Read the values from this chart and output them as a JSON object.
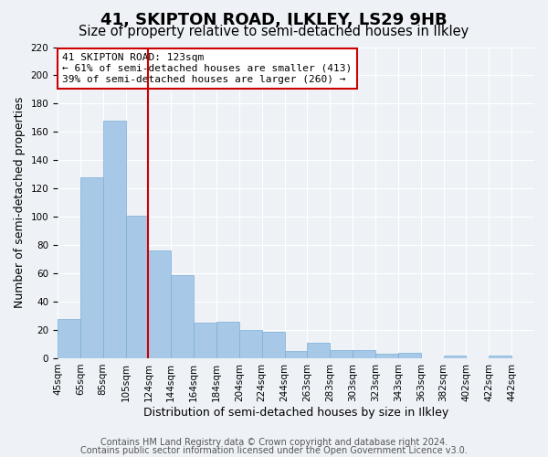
{
  "title": "41, SKIPTON ROAD, ILKLEY, LS29 9HB",
  "subtitle": "Size of property relative to semi-detached houses in Ilkley",
  "xlabel": "Distribution of semi-detached houses by size in Ilkley",
  "ylabel": "Number of semi-detached properties",
  "categories": [
    "45sqm",
    "65sqm",
    "85sqm",
    "105sqm",
    "124sqm",
    "144sqm",
    "164sqm",
    "184sqm",
    "204sqm",
    "224sqm",
    "244sqm",
    "263sqm",
    "283sqm",
    "303sqm",
    "323sqm",
    "343sqm",
    "363sqm",
    "382sqm",
    "402sqm",
    "422sqm",
    "442sqm"
  ],
  "values": [
    28,
    128,
    168,
    101,
    76,
    59,
    25,
    26,
    20,
    19,
    5,
    11,
    6,
    6,
    3,
    4,
    0,
    2,
    0,
    2,
    0
  ],
  "bar_color": "#a8c8e8",
  "bar_edge_color": "#7aafd4",
  "vline_color": "#cc0000",
  "vline_index": 3.5,
  "annotation_title": "41 SKIPTON ROAD: 123sqm",
  "annotation_line1": "← 61% of semi-detached houses are smaller (413)",
  "annotation_line2": "39% of semi-detached houses are larger (260) →",
  "annotation_box_edgecolor": "#cc0000",
  "ylim": [
    0,
    220
  ],
  "yticks": [
    0,
    20,
    40,
    60,
    80,
    100,
    120,
    140,
    160,
    180,
    200,
    220
  ],
  "footer_line1": "Contains HM Land Registry data © Crown copyright and database right 2024.",
  "footer_line2": "Contains public sector information licensed under the Open Government Licence v3.0.",
  "background_color": "#eef2f7",
  "grid_color": "#ffffff",
  "title_fontsize": 13,
  "subtitle_fontsize": 10.5,
  "axis_label_fontsize": 9,
  "tick_fontsize": 7.5,
  "footer_fontsize": 7,
  "annotation_fontsize": 8
}
